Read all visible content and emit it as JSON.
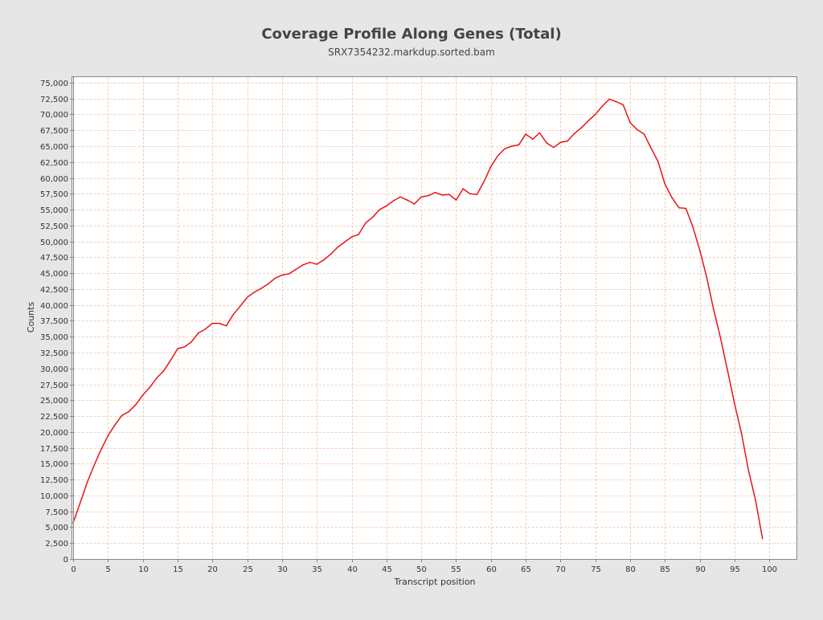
{
  "chart_data": {
    "type": "line",
    "title": "Coverage Profile Along Genes (Total)",
    "subtitle": "SRX7354232.markdup.sorted.bam",
    "xlabel": "Transcript position",
    "ylabel": "Counts",
    "xlim": [
      0,
      104
    ],
    "ylim": [
      0,
      76000
    ],
    "x_ticks": [
      0,
      5,
      10,
      15,
      20,
      25,
      30,
      35,
      40,
      45,
      50,
      55,
      60,
      65,
      70,
      75,
      80,
      85,
      90,
      95,
      100
    ],
    "x_tick_labels": [
      "0",
      "5",
      "10",
      "15",
      "20",
      "25",
      "30",
      "35",
      "40",
      "45",
      "50",
      "55",
      "60",
      "65",
      "70",
      "75",
      "80",
      "85",
      "90",
      "95",
      "100"
    ],
    "y_ticks": [
      0,
      2500,
      5000,
      7500,
      10000,
      12500,
      15000,
      17500,
      20000,
      22500,
      25000,
      27500,
      30000,
      32500,
      35000,
      37500,
      40000,
      42500,
      45000,
      47500,
      50000,
      52500,
      55000,
      57500,
      60000,
      62500,
      65000,
      67500,
      70000,
      72500,
      75000
    ],
    "y_tick_labels": [
      "0",
      "2,500",
      "5,000",
      "7,500",
      "10,000",
      "12,500",
      "15,000",
      "17,500",
      "20,000",
      "22,500",
      "25,000",
      "27,500",
      "30,000",
      "32,500",
      "35,000",
      "37,500",
      "40,000",
      "42,500",
      "45,000",
      "47,500",
      "50,000",
      "52,500",
      "55,000",
      "57,500",
      "60,000",
      "62,500",
      "65,000",
      "67,500",
      "70,000",
      "72,500",
      "75,000"
    ],
    "grid": true,
    "colors": {
      "line": "#e8141b",
      "grid": "#f2c4a8",
      "plot_background": "#ffffff",
      "page_background": "#e6e6e6",
      "title": "#444444",
      "text": "#333333"
    },
    "series": [
      {
        "x": [
          0,
          1,
          2,
          3,
          4,
          5,
          6,
          7,
          8,
          9,
          10,
          11,
          12,
          13,
          14,
          15,
          16,
          17,
          18,
          19,
          20,
          21,
          22,
          23,
          24,
          25,
          26,
          27,
          28,
          29,
          30,
          31,
          32,
          33,
          34,
          35,
          36,
          37,
          38,
          39,
          40,
          41,
          42,
          43,
          44,
          45,
          46,
          47,
          48,
          49,
          50,
          51,
          52,
          53,
          54,
          55,
          56,
          57,
          58,
          59,
          60,
          61,
          62,
          63,
          64,
          65,
          66,
          67,
          68,
          69,
          70,
          71,
          72,
          73,
          74,
          75,
          76,
          77,
          78,
          79,
          80,
          81,
          82,
          83,
          84,
          85,
          86,
          87,
          88,
          89,
          90,
          91,
          92,
          93,
          94,
          95,
          96,
          97,
          98,
          99
        ],
        "y": [
          5700,
          8800,
          12000,
          14700,
          17200,
          19400,
          21100,
          22600,
          23200,
          24300,
          25800,
          27000,
          28500,
          29600,
          31300,
          33100,
          33400,
          34200,
          35600,
          36200,
          37100,
          37100,
          36700,
          38500,
          39800,
          41200,
          42000,
          42600,
          43300,
          44200,
          44700,
          44900,
          45600,
          46300,
          46700,
          46400,
          47100,
          48000,
          49100,
          49900,
          50700,
          51100,
          52900,
          53800,
          55000,
          55600,
          56400,
          57000,
          56500,
          55900,
          57000,
          57200,
          57700,
          57300,
          57400,
          56500,
          58300,
          57500,
          57400,
          59400,
          61800,
          63500,
          64600,
          65000,
          65200,
          66900,
          66100,
          67100,
          65500,
          64800,
          65600,
          65800,
          67000,
          67900,
          69000,
          70000,
          71300,
          72400,
          72000,
          71500,
          68700,
          67600,
          66900,
          64700,
          62600,
          59000,
          56900,
          55300,
          55200,
          52300,
          48600,
          44300,
          39200,
          34700,
          29600,
          24400,
          19700,
          13900,
          9300,
          3200
        ]
      }
    ]
  }
}
